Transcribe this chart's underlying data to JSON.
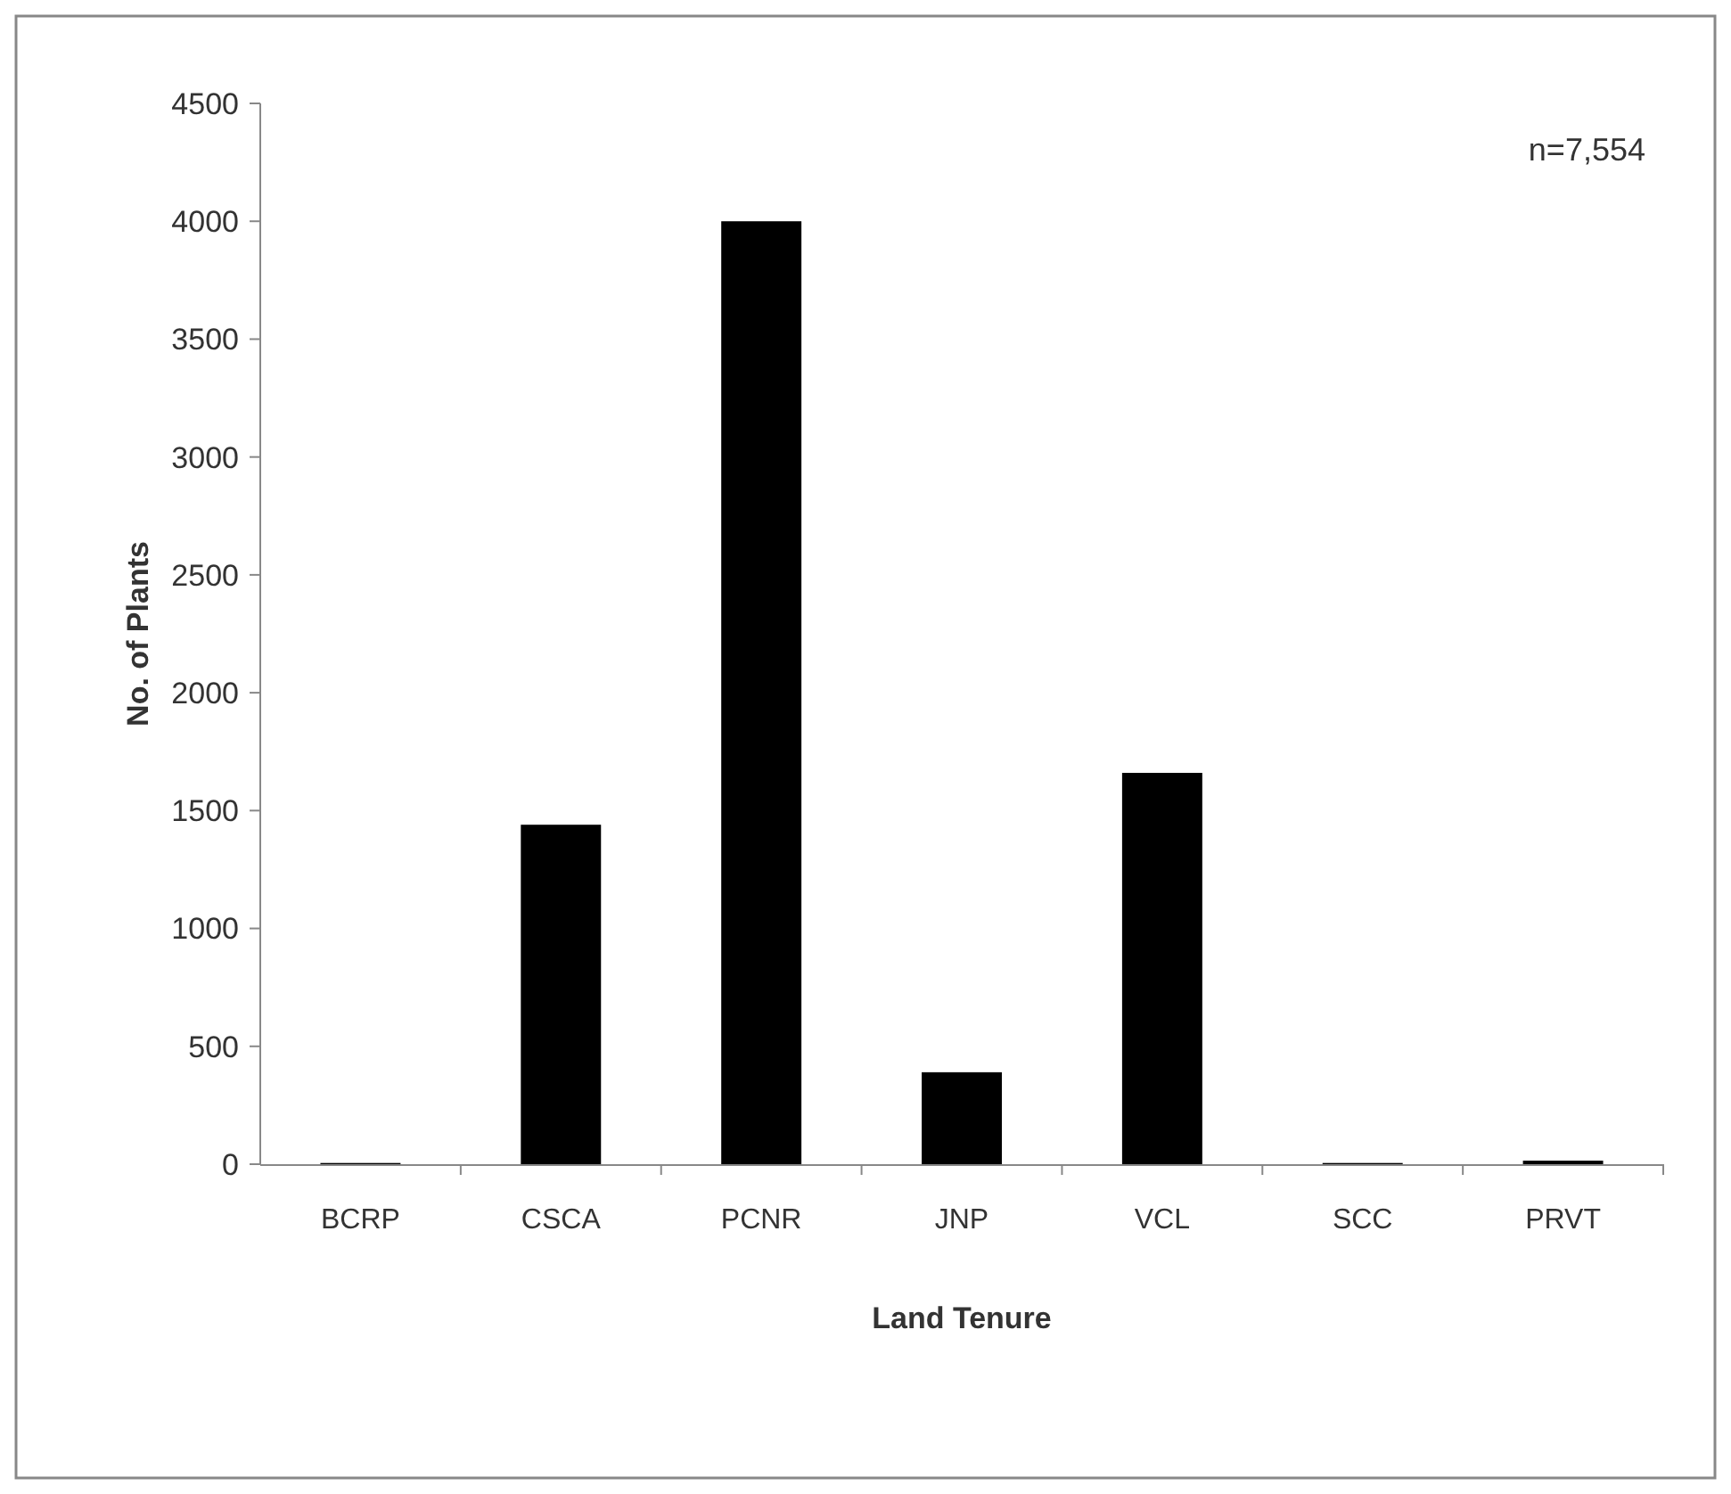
{
  "chart_data": {
    "type": "bar",
    "xlabel": "Land Tenure",
    "ylabel": "No. of Plants",
    "categories": [
      "BCRP",
      "CSCA",
      "PCNR",
      "JNP",
      "VCL",
      "SCC",
      "PRVT"
    ],
    "values": [
      5,
      1440,
      4000,
      390,
      1660,
      5,
      15
    ],
    "color": "#000000",
    "ylim": [
      0,
      4500
    ],
    "yticks": [
      0,
      500,
      1000,
      1500,
      2000,
      2500,
      3000,
      3500,
      4000,
      4500
    ],
    "annotations": [
      "n=7,554"
    ]
  }
}
